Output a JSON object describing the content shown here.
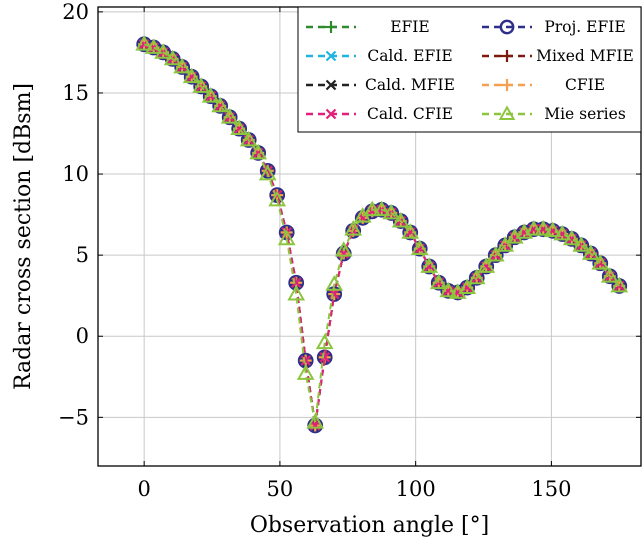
{
  "chart_data": {
    "type": "line",
    "xlabel": "Observation angle [°]",
    "ylabel": "Radar cross section [dBsm]",
    "xlim": [
      -17,
      183
    ],
    "ylim": [
      -8,
      20.3
    ],
    "xticks": [
      0,
      50,
      100,
      150
    ],
    "yticks": [
      -5,
      0,
      5,
      10,
      15,
      20
    ],
    "xtick_labels": [
      "0",
      "50",
      "100",
      "150"
    ],
    "ytick_labels": [
      "−5",
      "0",
      "5",
      "10",
      "15",
      "20"
    ],
    "grid": true,
    "legend_position": "top-right",
    "x": [
      0,
      3.5,
      7,
      10.5,
      14,
      17.5,
      21,
      24.5,
      28,
      31.5,
      35,
      38.5,
      42,
      45.5,
      49,
      52.5,
      56,
      59.5,
      63,
      66.5,
      70,
      73.5,
      77,
      80.5,
      84,
      87.5,
      91,
      94.5,
      98,
      101.5,
      105,
      108.5,
      112,
      115.5,
      119,
      122.5,
      126,
      129.5,
      133,
      136.5,
      140,
      143.5,
      147,
      150.5,
      154,
      157.5,
      161,
      164.5,
      168,
      171.5,
      175
    ],
    "series": [
      {
        "name": "EFIE",
        "color": "#2e8b2e",
        "marker": "plus",
        "values": [
          18.0,
          17.8,
          17.5,
          17.1,
          16.6,
          16.0,
          15.4,
          14.8,
          14.2,
          13.5,
          12.8,
          12.1,
          11.3,
          10.2,
          8.7,
          6.4,
          3.3,
          -1.5,
          -5.5,
          -1.3,
          2.6,
          5.1,
          6.5,
          7.3,
          7.7,
          7.8,
          7.6,
          7.1,
          6.4,
          5.4,
          4.3,
          3.3,
          2.8,
          2.7,
          3.0,
          3.6,
          4.3,
          5.0,
          5.6,
          6.1,
          6.4,
          6.6,
          6.6,
          6.5,
          6.3,
          6.0,
          5.6,
          5.1,
          4.5,
          3.7,
          3.1
        ]
      },
      {
        "name": "Proj. EFIE",
        "color": "#2d2f8a",
        "marker": "circle",
        "values": [
          18.0,
          17.8,
          17.5,
          17.1,
          16.6,
          16.0,
          15.4,
          14.8,
          14.2,
          13.5,
          12.8,
          12.1,
          11.3,
          10.2,
          8.7,
          6.4,
          3.3,
          -1.5,
          -5.5,
          -1.3,
          2.6,
          5.1,
          6.5,
          7.3,
          7.7,
          7.8,
          7.6,
          7.1,
          6.4,
          5.4,
          4.3,
          3.3,
          2.8,
          2.7,
          3.0,
          3.6,
          4.3,
          5.0,
          5.6,
          6.1,
          6.4,
          6.6,
          6.6,
          6.5,
          6.3,
          6.0,
          5.6,
          5.1,
          4.5,
          3.7,
          3.1
        ]
      },
      {
        "name": "Cald. EFIE",
        "color": "#22b5e0",
        "marker": "x",
        "values": [
          18.0,
          17.8,
          17.5,
          17.1,
          16.6,
          16.0,
          15.4,
          14.8,
          14.2,
          13.5,
          12.8,
          12.1,
          11.3,
          10.2,
          8.7,
          6.4,
          3.3,
          -1.5,
          -5.5,
          -1.3,
          2.6,
          5.1,
          6.5,
          7.3,
          7.7,
          7.8,
          7.6,
          7.1,
          6.4,
          5.4,
          4.3,
          3.3,
          2.8,
          2.7,
          3.0,
          3.6,
          4.3,
          5.0,
          5.6,
          6.1,
          6.4,
          6.6,
          6.6,
          6.5,
          6.3,
          6.0,
          5.6,
          5.1,
          4.5,
          3.7,
          3.1
        ]
      },
      {
        "name": "Mixed MFIE",
        "color": "#7b1a0d",
        "marker": "plus",
        "values": [
          18.0,
          17.8,
          17.5,
          17.1,
          16.6,
          16.0,
          15.4,
          14.8,
          14.2,
          13.5,
          12.8,
          12.1,
          11.3,
          10.2,
          8.7,
          6.4,
          3.3,
          -1.5,
          -5.5,
          -1.3,
          2.6,
          5.1,
          6.5,
          7.3,
          7.7,
          7.8,
          7.6,
          7.1,
          6.4,
          5.4,
          4.3,
          3.3,
          2.8,
          2.7,
          3.0,
          3.6,
          4.3,
          5.0,
          5.6,
          6.1,
          6.4,
          6.6,
          6.6,
          6.5,
          6.3,
          6.0,
          5.6,
          5.1,
          4.5,
          3.7,
          3.1
        ]
      },
      {
        "name": "Cald. MFIE",
        "color": "#222222",
        "marker": "x",
        "values": [
          18.0,
          17.8,
          17.5,
          17.1,
          16.6,
          16.0,
          15.4,
          14.8,
          14.2,
          13.5,
          12.8,
          12.1,
          11.3,
          10.2,
          8.7,
          6.4,
          3.3,
          -1.5,
          -5.5,
          -1.3,
          2.6,
          5.1,
          6.5,
          7.3,
          7.7,
          7.8,
          7.6,
          7.1,
          6.4,
          5.4,
          4.3,
          3.3,
          2.8,
          2.7,
          3.0,
          3.6,
          4.3,
          5.0,
          5.6,
          6.1,
          6.4,
          6.6,
          6.6,
          6.5,
          6.3,
          6.0,
          5.6,
          5.1,
          4.5,
          3.7,
          3.1
        ]
      },
      {
        "name": "CFIE",
        "color": "#f5a050",
        "marker": "plus",
        "values": [
          18.0,
          17.8,
          17.5,
          17.1,
          16.6,
          16.0,
          15.4,
          14.8,
          14.2,
          13.5,
          12.8,
          12.1,
          11.3,
          10.2,
          8.7,
          6.4,
          3.3,
          -1.5,
          -5.5,
          -1.3,
          2.6,
          5.1,
          6.5,
          7.3,
          7.7,
          7.8,
          7.6,
          7.1,
          6.4,
          5.4,
          4.3,
          3.3,
          2.8,
          2.7,
          3.0,
          3.6,
          4.3,
          5.0,
          5.6,
          6.1,
          6.4,
          6.6,
          6.6,
          6.5,
          6.3,
          6.0,
          5.6,
          5.1,
          4.5,
          3.7,
          3.1
        ]
      },
      {
        "name": "Cald. CFIE",
        "color": "#e0207a",
        "marker": "x",
        "values": [
          18.0,
          17.8,
          17.5,
          17.1,
          16.6,
          16.0,
          15.4,
          14.8,
          14.2,
          13.5,
          12.8,
          12.1,
          11.3,
          10.2,
          8.7,
          6.4,
          3.3,
          -1.5,
          -5.5,
          -1.3,
          2.6,
          5.1,
          6.5,
          7.3,
          7.7,
          7.8,
          7.6,
          7.1,
          6.4,
          5.4,
          4.3,
          3.3,
          2.8,
          2.7,
          3.0,
          3.6,
          4.3,
          5.0,
          5.6,
          6.1,
          6.4,
          6.6,
          6.6,
          6.5,
          6.3,
          6.0,
          5.6,
          5.1,
          4.5,
          3.7,
          3.1
        ]
      },
      {
        "name": "Mie series",
        "color": "#8cc63f",
        "marker": "triangle",
        "values": [
          18.0,
          17.8,
          17.5,
          17.1,
          16.6,
          16.0,
          15.4,
          14.8,
          14.2,
          13.5,
          12.8,
          12.1,
          11.3,
          10.0,
          8.4,
          6.0,
          2.6,
          -2.3,
          -5.3,
          -0.4,
          3.2,
          5.3,
          6.6,
          7.4,
          7.8,
          7.8,
          7.6,
          7.1,
          6.4,
          5.4,
          4.3,
          3.3,
          2.8,
          2.7,
          3.0,
          3.6,
          4.3,
          5.0,
          5.6,
          6.1,
          6.4,
          6.6,
          6.6,
          6.5,
          6.3,
          6.0,
          5.6,
          5.1,
          4.5,
          3.7,
          3.1
        ]
      }
    ],
    "legend_order": [
      "EFIE",
      "Proj. EFIE",
      "Cald. EFIE",
      "Mixed MFIE",
      "Cald. MFIE",
      "CFIE",
      "Cald. CFIE",
      "Mie series"
    ]
  }
}
